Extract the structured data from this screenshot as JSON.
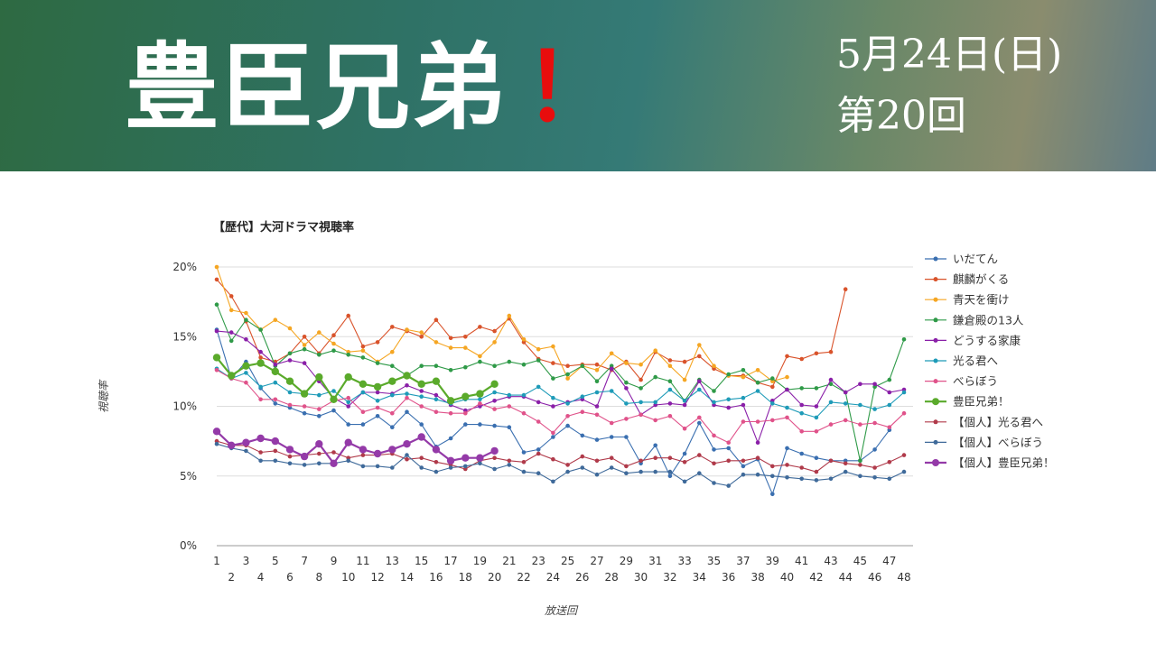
{
  "header": {
    "title": "豊臣兄弟",
    "title_mark": "！",
    "date": "5月24日(日)",
    "episode": "第20回"
  },
  "colors": {
    "banner_gradient": [
      "#2e6a42",
      "#357a76",
      "#8a8c6e",
      "#5f7c86"
    ],
    "title_mark": "#e80d0d"
  },
  "chart_data": {
    "type": "line",
    "title": "【歴代】大河ドラマ視聴率",
    "xlabel": "放送回",
    "ylabel": "視聴率",
    "ylim": [
      0,
      20
    ],
    "yticks": [
      "0%",
      "5%",
      "10%",
      "15%",
      "20%"
    ],
    "x": [
      1,
      2,
      3,
      4,
      5,
      6,
      7,
      8,
      9,
      10,
      11,
      12,
      13,
      14,
      15,
      16,
      17,
      18,
      19,
      20,
      21,
      22,
      23,
      24,
      25,
      26,
      27,
      28,
      29,
      30,
      31,
      32,
      33,
      34,
      35,
      36,
      37,
      38,
      39,
      40,
      41,
      42,
      43,
      44,
      45,
      46,
      47,
      48
    ],
    "grid": "horizontal",
    "legend_position": "right",
    "series": [
      {
        "name": "いだてん",
        "color": "#3a6fb0",
        "values": [
          15.5,
          12.0,
          13.2,
          11.3,
          10.2,
          9.9,
          9.5,
          9.3,
          9.7,
          8.7,
          8.7,
          9.3,
          8.5,
          9.6,
          8.7,
          7.1,
          7.7,
          8.7,
          8.7,
          8.6,
          8.5,
          6.7,
          6.9,
          7.8,
          8.6,
          7.9,
          7.6,
          7.8,
          7.8,
          5.9,
          7.2,
          5.0,
          6.6,
          8.8,
          6.9,
          7.0,
          5.7,
          6.2,
          3.7,
          7.0,
          6.6,
          6.3,
          6.1,
          6.1,
          6.1,
          6.9,
          8.3,
          null
        ]
      },
      {
        "name": "麒麟がくる",
        "color": "#d9532b",
        "values": [
          19.1,
          17.9,
          16.1,
          13.5,
          13.2,
          13.8,
          15.0,
          13.8,
          15.1,
          16.5,
          14.3,
          14.6,
          15.7,
          15.4,
          15.0,
          16.2,
          14.9,
          15.0,
          15.7,
          15.4,
          16.3,
          14.6,
          13.4,
          13.1,
          12.9,
          13.0,
          13.0,
          12.6,
          13.2,
          11.9,
          13.9,
          13.3,
          13.2,
          13.6,
          12.7,
          12.2,
          12.2,
          11.7,
          11.4,
          13.6,
          13.4,
          13.8,
          13.9,
          18.4,
          null,
          null,
          null,
          null
        ]
      },
      {
        "name": "青天を衝け",
        "color": "#f5a623",
        "values": [
          20.0,
          16.9,
          16.7,
          15.5,
          16.2,
          15.6,
          14.4,
          15.3,
          14.5,
          13.9,
          14.0,
          13.2,
          13.9,
          15.5,
          15.3,
          14.6,
          14.2,
          14.2,
          13.6,
          14.6,
          16.5,
          14.8,
          14.1,
          14.3,
          12.0,
          12.9,
          12.6,
          13.8,
          13.1,
          13.0,
          14.0,
          12.9,
          11.9,
          14.4,
          12.9,
          12.2,
          12.1,
          12.6,
          11.8,
          12.1,
          null,
          null,
          null,
          null,
          null,
          null,
          null,
          null
        ]
      },
      {
        "name": "鎌倉殿の13人",
        "color": "#2f9a48",
        "values": [
          17.3,
          14.7,
          16.2,
          15.5,
          12.9,
          13.8,
          14.1,
          13.7,
          14.0,
          13.7,
          13.5,
          13.1,
          12.9,
          12.2,
          12.9,
          12.9,
          12.6,
          12.8,
          13.2,
          12.9,
          13.2,
          13.0,
          13.3,
          12.0,
          12.3,
          12.9,
          11.8,
          12.9,
          11.7,
          11.3,
          12.1,
          11.8,
          10.4,
          11.9,
          11.1,
          12.3,
          12.6,
          11.7,
          12.0,
          11.2,
          11.3,
          11.3,
          11.6,
          11.0,
          6.1,
          11.4,
          11.9,
          14.8
        ]
      },
      {
        "name": "どうする家康",
        "color": "#8a1fa8",
        "values": [
          15.4,
          15.3,
          14.8,
          13.9,
          13.0,
          13.3,
          13.1,
          11.8,
          10.6,
          10.0,
          11.0,
          11.0,
          10.9,
          11.5,
          11.1,
          10.8,
          10.1,
          9.7,
          10.0,
          10.4,
          10.7,
          10.7,
          10.3,
          10.0,
          10.3,
          10.5,
          10.0,
          12.7,
          11.3,
          9.4,
          10.1,
          10.2,
          10.1,
          11.8,
          10.1,
          9.9,
          10.1,
          7.4,
          10.4,
          11.2,
          10.1,
          10.0,
          11.9,
          11.0,
          11.6,
          11.6,
          11.0,
          11.2
        ]
      },
      {
        "name": "光る君へ",
        "color": "#1e9bb8",
        "values": [
          12.7,
          12.0,
          12.4,
          11.4,
          11.7,
          11.0,
          10.9,
          10.8,
          11.1,
          10.3,
          11.0,
          10.4,
          10.8,
          10.9,
          10.7,
          10.5,
          10.2,
          10.5,
          10.5,
          11.0,
          10.8,
          10.8,
          11.4,
          10.6,
          10.2,
          10.7,
          11.0,
          11.1,
          10.2,
          10.3,
          10.3,
          11.2,
          10.4,
          11.2,
          10.3,
          10.5,
          10.6,
          11.1,
          10.2,
          9.9,
          9.5,
          9.2,
          10.3,
          10.2,
          10.1,
          9.8,
          10.1,
          11.0
        ]
      },
      {
        "name": "べらぼう",
        "color": "#e0528a",
        "values": [
          12.6,
          12.0,
          11.7,
          10.5,
          10.5,
          10.1,
          10.0,
          9.8,
          10.4,
          10.6,
          9.6,
          9.9,
          9.5,
          10.6,
          10.0,
          9.6,
          9.5,
          9.5,
          10.2,
          9.8,
          10.0,
          9.5,
          8.9,
          8.1,
          9.3,
          9.6,
          9.4,
          8.8,
          9.1,
          9.4,
          9.0,
          9.3,
          8.4,
          9.2,
          7.9,
          7.4,
          8.9,
          8.9,
          9.0,
          9.2,
          8.2,
          8.2,
          8.7,
          9.0,
          8.7,
          8.8,
          8.5,
          9.5
        ]
      },
      {
        "name": "豊臣兄弟！",
        "color": "#5aaa2b",
        "values": [
          13.5,
          12.2,
          12.9,
          13.1,
          12.5,
          11.8,
          10.9,
          12.1,
          10.5,
          12.1,
          11.6,
          11.4,
          11.8,
          12.2,
          11.6,
          11.8,
          10.4,
          10.7,
          10.9,
          11.6,
          null,
          null,
          null,
          null,
          null,
          null,
          null,
          null,
          null,
          null,
          null,
          null,
          null,
          null,
          null,
          null,
          null,
          null,
          null,
          null,
          null,
          null,
          null,
          null,
          null,
          null,
          null,
          null
        ]
      },
      {
        "name": "【個人】光る君へ",
        "color": "#b03a4a",
        "values": [
          7.5,
          7.2,
          7.2,
          6.7,
          6.8,
          6.4,
          6.5,
          6.6,
          6.7,
          6.3,
          6.5,
          6.5,
          6.6,
          6.2,
          6.3,
          6.0,
          5.8,
          5.5,
          6.1,
          6.3,
          6.1,
          6.0,
          6.6,
          6.2,
          5.8,
          6.4,
          6.1,
          6.3,
          5.7,
          6.1,
          6.3,
          6.3,
          6.0,
          6.5,
          5.9,
          6.1,
          6.1,
          6.3,
          5.7,
          5.8,
          5.6,
          5.3,
          6.1,
          5.9,
          5.8,
          5.6,
          6.0,
          6.5
        ]
      },
      {
        "name": "【個人】べらぼう",
        "color": "#3f6a9a",
        "values": [
          7.3,
          7.0,
          6.8,
          6.1,
          6.1,
          5.9,
          5.8,
          5.9,
          5.9,
          6.1,
          5.7,
          5.7,
          5.6,
          6.5,
          5.6,
          5.3,
          5.6,
          5.7,
          5.9,
          5.5,
          5.8,
          5.3,
          5.2,
          4.6,
          5.3,
          5.6,
          5.1,
          5.6,
          5.2,
          5.3,
          5.3,
          5.3,
          4.6,
          5.2,
          4.5,
          4.3,
          5.1,
          5.1,
          5.0,
          4.9,
          4.8,
          4.7,
          4.8,
          5.3,
          5.0,
          4.9,
          4.8,
          5.3
        ]
      },
      {
        "name": "【個人】豊臣兄弟！",
        "color": "#943aa8",
        "values": [
          8.2,
          7.2,
          7.4,
          7.7,
          7.5,
          6.9,
          6.4,
          7.3,
          5.9,
          7.4,
          6.9,
          6.6,
          6.9,
          7.3,
          7.8,
          6.9,
          6.1,
          6.3,
          6.3,
          6.8,
          null,
          null,
          null,
          null,
          null,
          null,
          null,
          null,
          null,
          null,
          null,
          null,
          null,
          null,
          null,
          null,
          null,
          null,
          null,
          null,
          null,
          null,
          null,
          null,
          null,
          null,
          null,
          null
        ]
      }
    ]
  }
}
